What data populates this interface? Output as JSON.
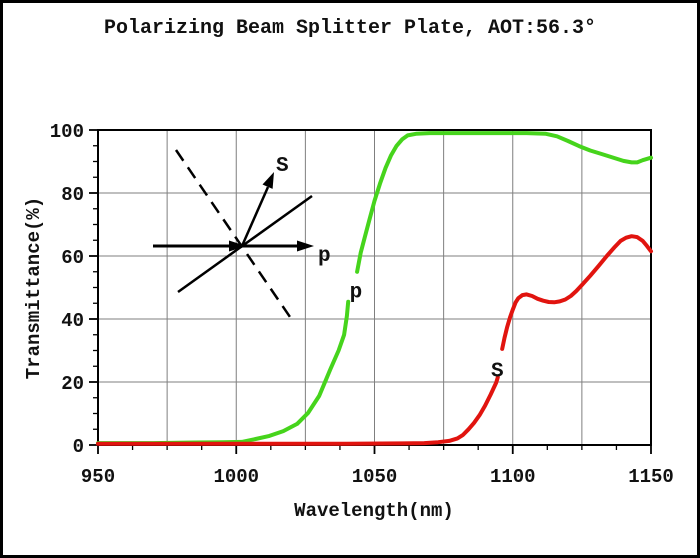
{
  "chart_data": {
    "type": "line",
    "title": "Polarizing Beam Splitter Plate, AOT:56.3°",
    "xlabel": "Wavelength(nm)",
    "ylabel": "Transmittance(%)",
    "xlim": [
      950,
      1150
    ],
    "ylim": [
      0,
      100
    ],
    "x_major_ticks": [
      950,
      1000,
      1050,
      1100,
      1150
    ],
    "x_minor_step": 12.5,
    "y_major_ticks": [
      0,
      20,
      40,
      60,
      80,
      100
    ],
    "y_minor_step": 5,
    "x_gridlines": [
      975,
      1000,
      1025,
      1050,
      1075,
      1100,
      1125
    ],
    "y_gridlines": [
      20,
      40,
      60,
      80,
      100
    ],
    "grid": true,
    "legend_position": "inline curve labels",
    "colors": {
      "frame": "#000000",
      "grid": "#7f7f7f",
      "text": "#111111"
    },
    "series": [
      {
        "name": "p-polarization",
        "label": "p",
        "color": "#46d41c",
        "label_pos": [
          1043.3,
          49
        ],
        "segments": [
          [
            [
              950,
              0.6
            ],
            [
              970,
              0.6
            ],
            [
              985,
              0.8
            ],
            [
              995,
              0.9
            ],
            [
              1002,
              1.0
            ],
            [
              1007,
              1.9
            ],
            [
              1012,
              2.9
            ],
            [
              1017,
              4.4
            ],
            [
              1022,
              6.7
            ],
            [
              1026,
              10.2
            ],
            [
              1030,
              15.6
            ],
            [
              1034,
              24
            ],
            [
              1037,
              30
            ],
            [
              1039,
              35
            ],
            [
              1040,
              41
            ],
            [
              1040.5,
              45.5
            ]
          ],
          [
            [
              1043.7,
              55
            ],
            [
              1045,
              61
            ],
            [
              1046.5,
              66
            ],
            [
              1048,
              71
            ],
            [
              1050,
              77.5
            ],
            [
              1052,
              83
            ],
            [
              1054,
              88
            ],
            [
              1056,
              92
            ],
            [
              1058,
              95
            ],
            [
              1060,
              97
            ],
            [
              1062,
              98.3
            ],
            [
              1065,
              98.8
            ],
            [
              1070,
              99
            ],
            [
              1080,
              99
            ],
            [
              1095,
              99
            ],
            [
              1105,
              99
            ],
            [
              1112,
              98.8
            ],
            [
              1116,
              98
            ],
            [
              1120,
              96.5
            ],
            [
              1124,
              94.9
            ],
            [
              1128,
              93.5
            ],
            [
              1132,
              92.4
            ],
            [
              1136,
              91.3
            ],
            [
              1140,
              90.2
            ],
            [
              1143,
              89.7
            ],
            [
              1145,
              89.7
            ],
            [
              1147,
              90.4
            ],
            [
              1150,
              91.2
            ]
          ]
        ]
      },
      {
        "name": "s-polarization",
        "label": "S",
        "color": "#e1140f",
        "label_pos": [
          1094.4,
          24
        ],
        "segments": [
          [
            [
              950,
              0.4
            ],
            [
              1000,
              0.4
            ],
            [
              1040,
              0.4
            ],
            [
              1060,
              0.5
            ],
            [
              1068,
              0.6
            ],
            [
              1073,
              0.9
            ],
            [
              1077,
              1.3
            ],
            [
              1080,
              2.1
            ],
            [
              1082,
              3.2
            ],
            [
              1084,
              5
            ],
            [
              1086,
              7
            ],
            [
              1088,
              9.5
            ],
            [
              1090,
              12.5
            ],
            [
              1092,
              16
            ],
            [
              1094,
              19.8
            ],
            [
              1094.6,
              21.5
            ]
          ],
          [
            [
              1096.2,
              30.5
            ],
            [
              1097,
              34
            ],
            [
              1098,
              37.5
            ],
            [
              1099,
              40.5
            ],
            [
              1100,
              43
            ],
            [
              1101,
              45.2
            ],
            [
              1102,
              46.6
            ],
            [
              1103.5,
              47.6
            ],
            [
              1105,
              47.8
            ],
            [
              1107,
              47.3
            ],
            [
              1109,
              46.4
            ],
            [
              1111,
              45.8
            ],
            [
              1113,
              45.4
            ],
            [
              1115,
              45.3
            ],
            [
              1117,
              45.6
            ],
            [
              1119,
              46.2
            ],
            [
              1121,
              47.3
            ],
            [
              1123,
              48.9
            ],
            [
              1125,
              50.8
            ],
            [
              1128,
              53.7
            ],
            [
              1131,
              56.8
            ],
            [
              1134,
              60
            ],
            [
              1137,
              63
            ],
            [
              1139,
              64.8
            ],
            [
              1141,
              65.8
            ],
            [
              1143,
              66.3
            ],
            [
              1145,
              66
            ],
            [
              1147,
              64.8
            ],
            [
              1148.5,
              63.2
            ],
            [
              1150,
              61.5
            ]
          ]
        ]
      }
    ],
    "inset": {
      "s_label": "S",
      "p_label": "p"
    }
  }
}
